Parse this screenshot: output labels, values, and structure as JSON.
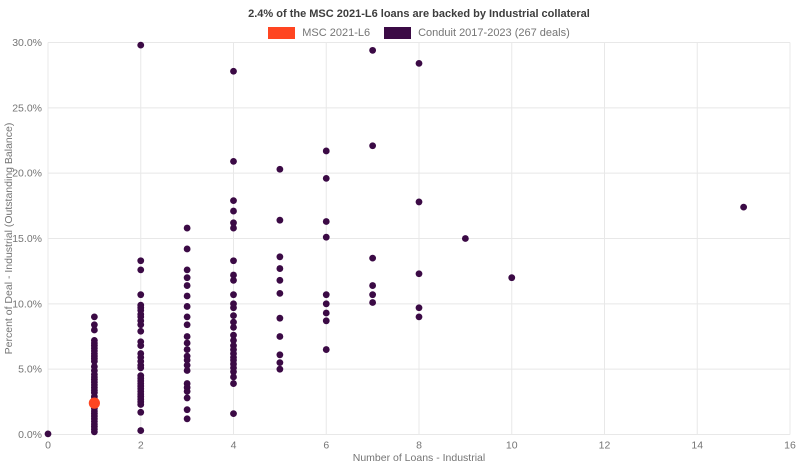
{
  "title": "2.4% of the MSC 2021-L6 loans are backed by Industrial collateral",
  "legend": {
    "items": [
      {
        "label": "MSC 2021-L6",
        "color": "#ff4521"
      },
      {
        "label": "Conduit 2017-2023 (267 deals)",
        "color": "#3b0a45"
      }
    ]
  },
  "colors": {
    "background": "#ffffff",
    "gridline": "#e8e8e8",
    "axis_text": "#757575",
    "title_text": "#3d3d3d"
  },
  "chart_data": {
    "type": "scatter",
    "title": "2.4% of the MSC 2021-L6 loans are backed by Industrial collateral",
    "xlabel": "Number of Loans - Industrial",
    "ylabel": "Percent of Deal - Industrial (Outstanding Balance)",
    "xlim": [
      0,
      16
    ],
    "ylim": [
      0,
      30
    ],
    "grid": true,
    "legend_position": "top-center",
    "x_ticks": [
      "0",
      "2",
      "4",
      "6",
      "8",
      "10",
      "12",
      "14",
      "16"
    ],
    "x_tick_values": [
      0,
      2,
      4,
      6,
      8,
      10,
      12,
      14,
      16
    ],
    "y_ticks": [
      "0.0%",
      "5.0%",
      "10.0%",
      "15.0%",
      "20.0%",
      "25.0%",
      "30.0%"
    ],
    "y_tick_values": [
      0,
      5,
      10,
      15,
      20,
      25,
      30
    ],
    "series": [
      {
        "name": "MSC 2021-L6",
        "color": "#ff4521",
        "marker_radius": 5.6,
        "points": [
          [
            1,
            2.4
          ]
        ]
      },
      {
        "name": "Conduit 2017-2023 (267 deals)",
        "color": "#3b0a45",
        "marker_radius": 3.4,
        "points": [
          [
            0,
            0.05
          ],
          [
            1,
            9.0
          ],
          [
            1,
            8.4
          ],
          [
            1,
            8.0
          ],
          [
            1,
            7.2
          ],
          [
            1,
            7.0
          ],
          [
            1,
            6.8
          ],
          [
            1,
            6.6
          ],
          [
            1,
            6.4
          ],
          [
            1,
            6.2
          ],
          [
            1,
            6.0
          ],
          [
            1,
            5.8
          ],
          [
            1,
            5.6
          ],
          [
            1,
            5.2
          ],
          [
            1,
            4.9
          ],
          [
            1,
            4.6
          ],
          [
            1,
            4.4
          ],
          [
            1,
            4.2
          ],
          [
            1,
            4.0
          ],
          [
            1,
            3.8
          ],
          [
            1,
            3.6
          ],
          [
            1,
            3.4
          ],
          [
            1,
            3.2
          ],
          [
            1,
            2.9
          ],
          [
            1,
            2.7
          ],
          [
            1,
            2.5
          ],
          [
            1,
            2.2
          ],
          [
            1,
            2.0
          ],
          [
            1,
            1.8
          ],
          [
            1,
            1.6
          ],
          [
            1,
            1.4
          ],
          [
            1,
            1.2
          ],
          [
            1,
            1.0
          ],
          [
            1,
            0.8
          ],
          [
            1,
            0.6
          ],
          [
            1,
            0.4
          ],
          [
            1,
            0.2
          ],
          [
            2,
            29.8
          ],
          [
            2,
            13.3
          ],
          [
            2,
            12.6
          ],
          [
            2,
            10.7
          ],
          [
            2,
            9.9
          ],
          [
            2,
            9.7
          ],
          [
            2,
            9.5
          ],
          [
            2,
            9.2
          ],
          [
            2,
            9.0
          ],
          [
            2,
            8.7
          ],
          [
            2,
            8.4
          ],
          [
            2,
            7.9
          ],
          [
            2,
            7.1
          ],
          [
            2,
            6.8
          ],
          [
            2,
            6.2
          ],
          [
            2,
            5.9
          ],
          [
            2,
            5.6
          ],
          [
            2,
            5.3
          ],
          [
            2,
            5.1
          ],
          [
            2,
            4.5
          ],
          [
            2,
            4.3
          ],
          [
            2,
            4.1
          ],
          [
            2,
            3.9
          ],
          [
            2,
            3.7
          ],
          [
            2,
            3.5
          ],
          [
            2,
            3.3
          ],
          [
            2,
            3.1
          ],
          [
            2,
            2.9
          ],
          [
            2,
            2.7
          ],
          [
            2,
            2.5
          ],
          [
            2,
            2.3
          ],
          [
            2,
            1.7
          ],
          [
            2,
            0.3
          ],
          [
            3,
            15.8
          ],
          [
            3,
            14.2
          ],
          [
            3,
            12.6
          ],
          [
            3,
            12.0
          ],
          [
            3,
            11.4
          ],
          [
            3,
            10.6
          ],
          [
            3,
            9.8
          ],
          [
            3,
            9.0
          ],
          [
            3,
            8.4
          ],
          [
            3,
            7.5
          ],
          [
            3,
            7.0
          ],
          [
            3,
            6.5
          ],
          [
            3,
            6.0
          ],
          [
            3,
            5.7
          ],
          [
            3,
            5.3
          ],
          [
            3,
            4.9
          ],
          [
            3,
            3.9
          ],
          [
            3,
            3.6
          ],
          [
            3,
            3.3
          ],
          [
            3,
            2.8
          ],
          [
            3,
            1.9
          ],
          [
            3,
            1.2
          ],
          [
            4,
            27.8
          ],
          [
            4,
            20.9
          ],
          [
            4,
            17.9
          ],
          [
            4,
            17.1
          ],
          [
            4,
            16.2
          ],
          [
            4,
            15.8
          ],
          [
            4,
            13.3
          ],
          [
            4,
            12.2
          ],
          [
            4,
            11.8
          ],
          [
            4,
            10.7
          ],
          [
            4,
            10.0
          ],
          [
            4,
            9.7
          ],
          [
            4,
            9.1
          ],
          [
            4,
            8.6
          ],
          [
            4,
            8.2
          ],
          [
            4,
            7.6
          ],
          [
            4,
            7.2
          ],
          [
            4,
            6.8
          ],
          [
            4,
            6.5
          ],
          [
            4,
            6.2
          ],
          [
            4,
            5.9
          ],
          [
            4,
            5.7
          ],
          [
            4,
            5.4
          ],
          [
            4,
            5.1
          ],
          [
            4,
            4.8
          ],
          [
            4,
            4.4
          ],
          [
            4,
            3.9
          ],
          [
            4,
            1.6
          ],
          [
            5,
            20.3
          ],
          [
            5,
            16.4
          ],
          [
            5,
            13.6
          ],
          [
            5,
            12.7
          ],
          [
            5,
            11.8
          ],
          [
            5,
            10.8
          ],
          [
            5,
            8.9
          ],
          [
            5,
            7.5
          ],
          [
            5,
            6.1
          ],
          [
            5,
            5.5
          ],
          [
            5,
            5.0
          ],
          [
            6,
            21.7
          ],
          [
            6,
            19.6
          ],
          [
            6,
            16.3
          ],
          [
            6,
            15.1
          ],
          [
            6,
            10.7
          ],
          [
            6,
            10.0
          ],
          [
            6,
            9.3
          ],
          [
            6,
            8.7
          ],
          [
            6,
            6.5
          ],
          [
            7,
            29.4
          ],
          [
            7,
            22.1
          ],
          [
            7,
            13.5
          ],
          [
            7,
            11.4
          ],
          [
            7,
            10.7
          ],
          [
            7,
            10.1
          ],
          [
            8,
            28.4
          ],
          [
            8,
            17.8
          ],
          [
            8,
            12.3
          ],
          [
            8,
            9.7
          ],
          [
            8,
            9.0
          ],
          [
            9,
            15.0
          ],
          [
            10,
            12.0
          ],
          [
            15,
            17.4
          ]
        ]
      }
    ]
  }
}
